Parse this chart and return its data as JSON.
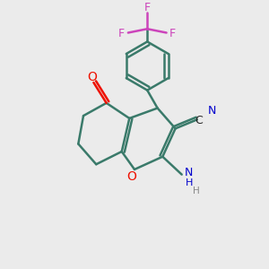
{
  "bg_color": "#ebebeb",
  "bond_color": "#3a7a6a",
  "bond_width": 1.8,
  "O_color": "#ee1100",
  "N_color": "#0000cc",
  "F_color": "#cc44bb",
  "figsize": [
    3.0,
    3.0
  ],
  "dpi": 100,
  "xlim": [
    0,
    10
  ],
  "ylim": [
    0,
    10
  ]
}
